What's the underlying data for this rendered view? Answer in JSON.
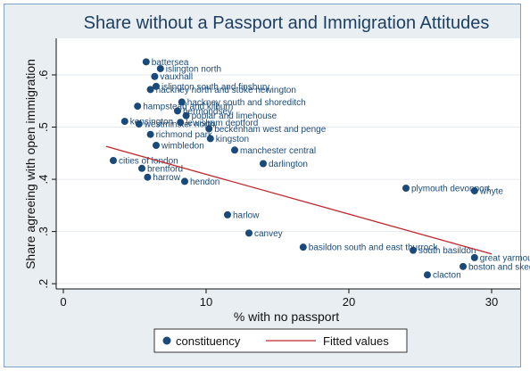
{
  "chart_data": {
    "type": "scatter",
    "title": "Share without a Passport and Immigration Attitudes",
    "xlabel": "% with no passport",
    "ylabel": "Share agreeing with open immigration",
    "xlim": [
      -0.5,
      32
    ],
    "ylim": [
      0.19,
      0.67
    ],
    "xticks": [
      0,
      10,
      20,
      30
    ],
    "yticks": [
      0.2,
      0.3,
      0.4,
      0.5,
      0.6
    ],
    "ytick_labels": [
      ".2",
      ".3",
      ".4",
      ".5",
      ".6"
    ],
    "grid": "horizontal",
    "legend_position": "bottom",
    "series": [
      {
        "name": "constituency",
        "kind": "scatter",
        "color": "#1a4a7a",
        "points": [
          {
            "x": 5.8,
            "y": 0.625,
            "label": "battersea"
          },
          {
            "x": 6.8,
            "y": 0.612,
            "label": "islington north"
          },
          {
            "x": 6.4,
            "y": 0.597,
            "label": "vauxhall"
          },
          {
            "x": 6.5,
            "y": 0.578,
            "label": "islington south and finsbury"
          },
          {
            "x": 6.1,
            "y": 0.572,
            "label": "hackney north and stoke newington"
          },
          {
            "x": 5.2,
            "y": 0.54,
            "label": "hampstead and kilburn"
          },
          {
            "x": 8.3,
            "y": 0.548,
            "label": "hackney south and shoreditch"
          },
          {
            "x": 8.0,
            "y": 0.531,
            "label": "bermondsey"
          },
          {
            "x": 8.6,
            "y": 0.522,
            "label": "poplar and limehouse"
          },
          {
            "x": 8.2,
            "y": 0.509,
            "label": "lewisham deptford"
          },
          {
            "x": 4.3,
            "y": 0.511,
            "label": "kensington"
          },
          {
            "x": 5.3,
            "y": 0.506,
            "label": "westminster north"
          },
          {
            "x": 10.2,
            "y": 0.497,
            "label": "beckenham west and penge"
          },
          {
            "x": 6.1,
            "y": 0.486,
            "label": "richmond park"
          },
          {
            "x": 10.3,
            "y": 0.478,
            "label": "kingston"
          },
          {
            "x": 6.5,
            "y": 0.465,
            "label": "wimbledon"
          },
          {
            "x": 12.0,
            "y": 0.456,
            "label": "manchester central"
          },
          {
            "x": 3.5,
            "y": 0.436,
            "label": "cities of london"
          },
          {
            "x": 5.5,
            "y": 0.421,
            "label": "brentford"
          },
          {
            "x": 5.9,
            "y": 0.404,
            "label": "harrow"
          },
          {
            "x": 8.5,
            "y": 0.396,
            "label": "hendon"
          },
          {
            "x": 14.0,
            "y": 0.43,
            "label": "darlington"
          },
          {
            "x": 24.0,
            "y": 0.383,
            "label": "plymouth devonport"
          },
          {
            "x": 28.8,
            "y": 0.378,
            "label": "whyte"
          },
          {
            "x": 11.5,
            "y": 0.332,
            "label": "harlow"
          },
          {
            "x": 13.0,
            "y": 0.297,
            "label": "canvey"
          },
          {
            "x": 16.8,
            "y": 0.27,
            "label": "basildon south and east thurrock"
          },
          {
            "x": 24.5,
            "y": 0.264,
            "label": "south basildon"
          },
          {
            "x": 28.8,
            "y": 0.25,
            "label": "great yarmouth"
          },
          {
            "x": 28.0,
            "y": 0.233,
            "label": "boston and skegness"
          },
          {
            "x": 25.5,
            "y": 0.217,
            "label": "clacton"
          }
        ]
      },
      {
        "name": "Fitted values",
        "kind": "line",
        "color": "#c0282e",
        "x": [
          3,
          30
        ],
        "y": [
          0.463,
          0.257
        ]
      }
    ]
  },
  "legend": {
    "items": [
      "constituency",
      "Fitted values"
    ]
  }
}
